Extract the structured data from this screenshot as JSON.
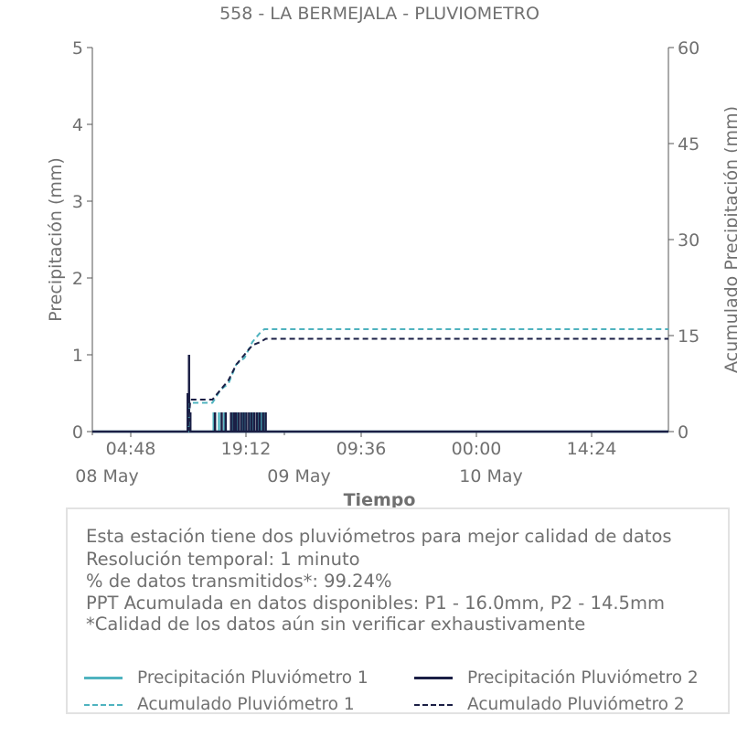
{
  "chart_data": {
    "type": "line",
    "title": "558 - LA BERMEJALA - PLUVIOMETRO",
    "xlabel": "Tiempo",
    "ylabel": "Precipitación (mm)",
    "y2label": "Acumulado Precipitación (mm)",
    "x_range": [
      "2025-05-08 00:00",
      "2025-05-11 00:00"
    ],
    "ylim": [
      0,
      5
    ],
    "y2lim": [
      0,
      60
    ],
    "yticks": [
      "0",
      "1",
      "2",
      "3",
      "4",
      "5"
    ],
    "y2ticks": [
      "0",
      "15",
      "30",
      "45",
      "60"
    ],
    "xticks": [
      {
        "t": "2025-05-08 04:48",
        "label": "04:48"
      },
      {
        "t": "2025-05-08 19:12",
        "label": "19:12"
      },
      {
        "t": "2025-05-09 09:36",
        "label": "09:36"
      },
      {
        "t": "2025-05-10 00:00",
        "label": "00:00"
      },
      {
        "t": "2025-05-10 14:24",
        "label": "14:24"
      }
    ],
    "date_labels": [
      {
        "t": "2025-05-08 00:00",
        "label": "08 May"
      },
      {
        "t": "2025-05-09 00:00",
        "label": "09 May"
      },
      {
        "t": "2025-05-10 00:00",
        "label": "10 May"
      }
    ],
    "grid": false,
    "series": [
      {
        "name": "Precipitación Pluviómetro 1",
        "axis": "left",
        "color": "#4fb3bf",
        "style": "solid",
        "times": [
          "2025-05-08 12:00",
          "2025-05-08 12:10",
          "2025-05-08 15:10",
          "2025-05-08 15:50",
          "2025-05-08 16:30",
          "2025-05-08 17:30",
          "2025-05-08 17:50",
          "2025-05-08 18:10",
          "2025-05-08 18:40",
          "2025-05-08 19:10",
          "2025-05-08 19:40",
          "2025-05-08 20:10",
          "2025-05-08 20:40",
          "2025-05-08 21:10",
          "2025-05-08 21:30"
        ],
        "values": [
          0.5,
          0.25,
          0.25,
          0.25,
          0.25,
          0.25,
          0.25,
          0.25,
          0.25,
          0.25,
          0.25,
          0.25,
          0.25,
          0.25,
          0.25
        ]
      },
      {
        "name": "Precipitación Pluviómetro 2",
        "axis": "left",
        "color": "#1b1f45",
        "style": "solid",
        "times": [
          "2025-05-08 11:55",
          "2025-05-08 12:05",
          "2025-05-08 12:15",
          "2025-05-08 15:20",
          "2025-05-08 16:10",
          "2025-05-08 16:40",
          "2025-05-08 17:20",
          "2025-05-08 17:40",
          "2025-05-08 17:55",
          "2025-05-08 18:15",
          "2025-05-08 18:35",
          "2025-05-08 18:55",
          "2025-05-08 19:15",
          "2025-05-08 19:35",
          "2025-05-08 19:55",
          "2025-05-08 20:15",
          "2025-05-08 20:35",
          "2025-05-08 20:55",
          "2025-05-08 21:20",
          "2025-05-08 21:40"
        ],
        "values": [
          0.5,
          1.0,
          0.25,
          0.25,
          0.25,
          0.25,
          0.25,
          0.25,
          0.25,
          0.25,
          0.25,
          0.25,
          0.25,
          0.25,
          0.25,
          0.25,
          0.25,
          0.25,
          0.25,
          0.25
        ]
      },
      {
        "name": "Acumulado Pluviómetro 1",
        "axis": "right",
        "color": "#4fb3bf",
        "style": "dashed",
        "x": [
          "2025-05-08 00:00",
          "2025-05-08 12:00",
          "2025-05-08 12:10",
          "2025-05-08 15:00",
          "2025-05-08 16:00",
          "2025-05-08 17:00",
          "2025-05-08 18:00",
          "2025-05-08 19:00",
          "2025-05-08 20:00",
          "2025-05-08 21:00",
          "2025-05-08 21:30",
          "2025-05-11 00:00"
        ],
        "y": [
          0,
          0,
          4.5,
          4.5,
          6.5,
          7.5,
          10.5,
          11.5,
          14.0,
          15.5,
          16.0,
          16.0
        ]
      },
      {
        "name": "Acumulado Pluviómetro 2",
        "axis": "right",
        "color": "#1b1f45",
        "style": "dashed",
        "x": [
          "2025-05-08 00:00",
          "2025-05-08 11:55",
          "2025-05-08 12:15",
          "2025-05-08 15:00",
          "2025-05-08 16:00",
          "2025-05-08 17:00",
          "2025-05-08 18:00",
          "2025-05-08 19:00",
          "2025-05-08 20:00",
          "2025-05-08 21:00",
          "2025-05-08 21:40",
          "2025-05-11 00:00"
        ],
        "y": [
          0,
          0,
          5.0,
          5.0,
          6.5,
          8.0,
          10.5,
          12.0,
          13.5,
          14.0,
          14.5,
          14.5
        ]
      }
    ]
  },
  "info": {
    "line1": "Esta estación tiene dos pluviómetros para mejor calidad de datos",
    "line2": "Resolución temporal: 1 minuto",
    "line3": "% de datos transmitidos*: 99.24%",
    "line4": "PPT Acumulada en datos disponibles: P1 - 16.0mm, P2 - 14.5mm",
    "line5": "*Calidad de los datos aún sin verificar exhaustivamente"
  },
  "legend": {
    "p1": "Precipitación Pluviómetro 1",
    "p2": "Precipitación Pluviómetro 2",
    "a1": "Acumulado Pluviómetro 1",
    "a2": "Acumulado Pluviómetro 2"
  },
  "colors": {
    "p1": "#4fb3bf",
    "p2": "#1b1f45",
    "text": "#6b6b6b",
    "axis": "#555555"
  }
}
